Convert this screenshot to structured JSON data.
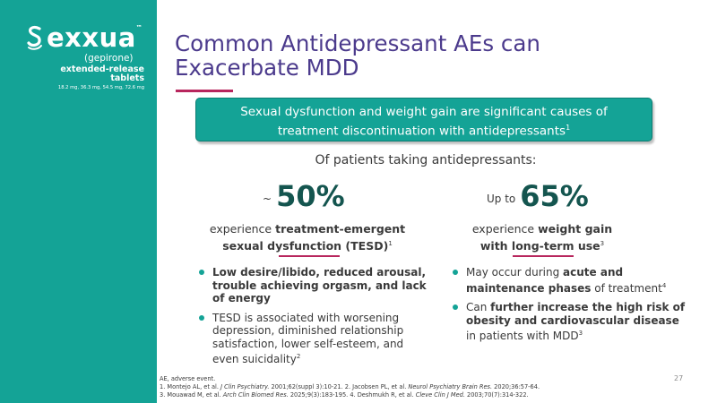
{
  "brand": {
    "name": "exxua",
    "trademark": "™",
    "generic": "(gepirone)",
    "formulation": "extended-release tablets",
    "doses": "18.2 mg, 36.3 mg, 54.5 mg, 72.6 mg"
  },
  "title": {
    "line1": "Common Antidepressant AEs can",
    "line2": "Exacerbate MDD"
  },
  "callout": {
    "line1": "Sexual dysfunction and weight gain are significant causes of",
    "line2": "treatment discontinuation with antidepressants",
    "ref": "1"
  },
  "subhead": "Of patients taking antidepressants:",
  "left": {
    "prefix": "~",
    "value": "50%",
    "desc_plain": "experience ",
    "desc_bold1": "treatment-emergent",
    "desc_bold2": "sexual dysfunction (TESD)",
    "desc_ref": "1",
    "bullets": [
      {
        "bold": "Low desire/libido, reduced arousal, trouble achieving orgasm, and lack of energy"
      },
      {
        "text": "TESD is associated with worsening depression, diminished relationship satisfaction, lower self-esteem, and even suicidality",
        "ref": "2"
      }
    ]
  },
  "right": {
    "prefix": "Up to",
    "value": "65%",
    "desc_plain": "experience ",
    "desc_bold1": "weight gain",
    "desc_bold2": "with long-term use",
    "desc_ref": "3",
    "bullets": [
      {
        "pre": "May occur during ",
        "bold": "acute and maintenance phases",
        "post": " of treatment",
        "ref": "4"
      },
      {
        "pre": "Can ",
        "bold": "further increase the high risk of obesity and cardiovascular disease",
        "post": " in patients with MDD",
        "ref": "3"
      }
    ]
  },
  "footnotes": {
    "abbr": "AE, adverse event.",
    "ref1_pre": "1. Montejo AL, et al. ",
    "ref1_journal": "J Clin Psychiatry.",
    "ref1_post": " 2001;62(suppl 3):10-21. 2. Jacobsen PL, et al. ",
    "ref2_journal": "Neurol Psychiatry Brain Res.",
    "ref2_post": " 2020;36:57-64.",
    "ref3_pre": "3. Mouawad M, et al. ",
    "ref3_journal": "Arch Clin Biomed Res.",
    "ref3_post": " 2025;9(3):183-195. 4. Deshmukh R, et al. ",
    "ref4_journal": "Cleve Clin J Med.",
    "ref4_post": " 2003;70(7):314-322."
  },
  "page_number": "27",
  "colors": {
    "teal": "#14a396",
    "purple": "#4b3a8c",
    "magenta": "#b8265d",
    "dark_teal": "#14554f"
  }
}
